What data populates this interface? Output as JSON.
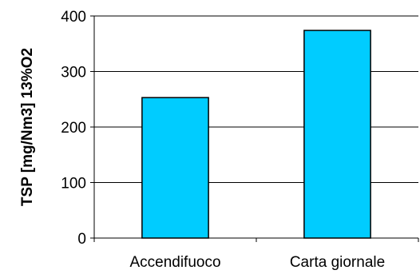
{
  "chart_data": {
    "type": "bar",
    "categories": [
      "Accendifuoco",
      "Carta giornale"
    ],
    "values": [
      253,
      374
    ],
    "title": "",
    "xlabel": "",
    "ylabel": "TSP [mg/Nm3] 13%O2",
    "ylim": [
      0,
      400
    ],
    "yticks": [
      0,
      100,
      200,
      300,
      400
    ],
    "grid": true,
    "legend": "none",
    "bar_color": "#00CCFF",
    "bar_edge_color": "#000000",
    "grid_color": "#000000"
  }
}
